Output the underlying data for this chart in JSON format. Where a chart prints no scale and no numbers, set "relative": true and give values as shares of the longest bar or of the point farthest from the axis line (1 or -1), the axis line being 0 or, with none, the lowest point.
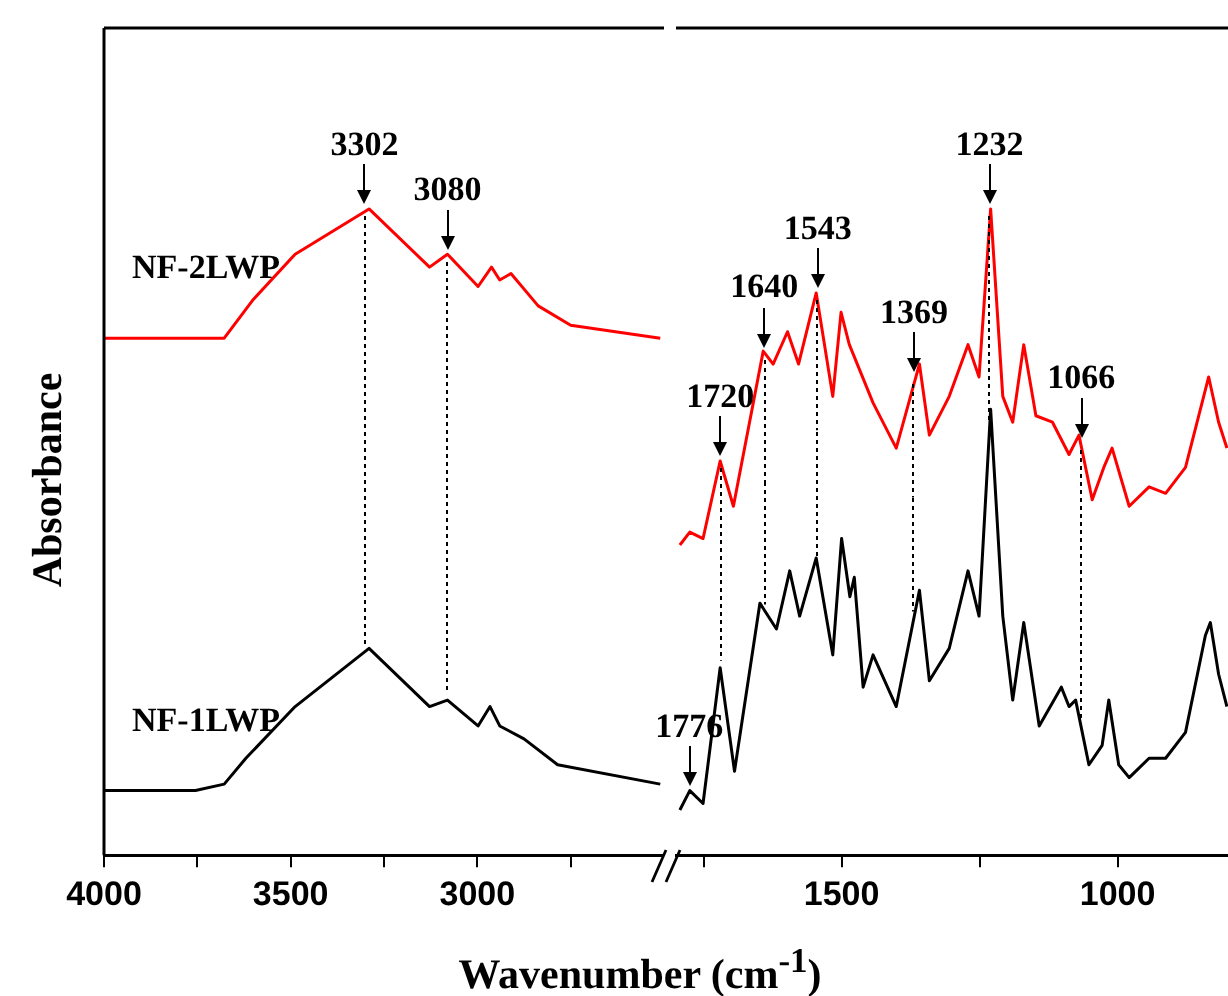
{
  "chart_data": [
    {
      "type": "line",
      "xlabel": "Wavenumber (cm$^{-1}$)",
      "ylabel": "Absorbance",
      "relative": true,
      "tick_labels": "x",
      "marker": "none",
      "xlim": [
        4000,
        2500
      ],
      "xticks": [
        4000,
        {
          "value": 3750,
          "label": null
        },
        3500,
        {
          "value": 3250,
          "label": null
        },
        3000,
        {
          "value": 2750,
          "label": null
        }
      ],
      "series": [
        {
          "name": "NF-2LWP",
          "color": "#ff0000",
          "x": [
            4000,
            3678,
            3600,
            3488,
            3290,
            3128,
            3080,
            2998,
            2962,
            2940,
            2910,
            2837,
            2750,
            2510
          ],
          "values": [
            0.8,
            0.8,
            0.86,
            0.93,
            1.0,
            0.91,
            0.93,
            0.88,
            0.91,
            0.89,
            0.9,
            0.85,
            0.82,
            0.8
          ]
        },
        {
          "name": "NF-1LWP",
          "color": "#000000",
          "x": [
            4000,
            3755,
            3678,
            3620,
            3488,
            3290,
            3128,
            3080,
            2998,
            2966,
            2940,
            2875,
            2785,
            2510
          ],
          "values": [
            0.1,
            0.1,
            0.11,
            0.15,
            0.23,
            0.32,
            0.23,
            0.24,
            0.2,
            0.23,
            0.2,
            0.18,
            0.14,
            0.11
          ]
        }
      ],
      "annotations": [
        {
          "text": "3302",
          "x": 3302,
          "y": 1.0
        },
        {
          "text": "3080",
          "x": 3080,
          "y": 0.93
        }
      ]
    },
    {
      "type": "line",
      "relative": true,
      "tick_labels": "x",
      "marker": "none",
      "xlim": [
        1800,
        800
      ],
      "xticks": [
        {
          "value": 1750,
          "label": null
        },
        1500,
        {
          "value": 1250,
          "label": null
        },
        1000
      ],
      "series": [
        {
          "color": "#ff0000",
          "x": [
            1793,
            1775,
            1751,
            1720,
            1696,
            1642,
            1624,
            1598,
            1578,
            1546,
            1516,
            1501,
            1486,
            1443,
            1401,
            1359,
            1341,
            1305,
            1271,
            1251,
            1230,
            1208,
            1190,
            1170,
            1148,
            1118,
            1088,
            1070,
            1046,
            1025,
            1010,
            979,
            943,
            913,
            877,
            835,
            817,
            802
          ],
          "values": [
            0.48,
            0.5,
            0.49,
            0.61,
            0.54,
            0.78,
            0.76,
            0.81,
            0.76,
            0.87,
            0.71,
            0.84,
            0.79,
            0.7,
            0.63,
            0.76,
            0.65,
            0.71,
            0.79,
            0.74,
            1.0,
            0.71,
            0.67,
            0.79,
            0.68,
            0.67,
            0.62,
            0.65,
            0.55,
            0.6,
            0.63,
            0.54,
            0.57,
            0.56,
            0.6,
            0.74,
            0.67,
            0.63
          ]
        },
        {
          "color": "#000000",
          "x": [
            1793,
            1775,
            1751,
            1720,
            1694,
            1648,
            1618,
            1594,
            1576,
            1546,
            1516,
            1500,
            1485,
            1477,
            1461,
            1443,
            1401,
            1359,
            1341,
            1305,
            1271,
            1251,
            1230,
            1208,
            1190,
            1170,
            1142,
            1102,
            1088,
            1076,
            1052,
            1028,
            1016,
            998,
            979,
            943,
            913,
            877,
            841,
            832,
            817,
            802
          ],
          "values": [
            0.07,
            0.1,
            0.08,
            0.29,
            0.13,
            0.39,
            0.35,
            0.44,
            0.37,
            0.46,
            0.31,
            0.49,
            0.4,
            0.43,
            0.26,
            0.31,
            0.23,
            0.41,
            0.27,
            0.32,
            0.44,
            0.37,
            0.69,
            0.37,
            0.24,
            0.36,
            0.2,
            0.26,
            0.23,
            0.24,
            0.14,
            0.17,
            0.24,
            0.14,
            0.12,
            0.15,
            0.15,
            0.19,
            0.34,
            0.36,
            0.28,
            0.23
          ]
        }
      ],
      "annotations": [
        {
          "text": "1776",
          "x": 1776,
          "y": 0.1
        },
        {
          "text": "1720",
          "x": 1720,
          "y": 0.61
        },
        {
          "text": "1640",
          "x": 1640,
          "y": 0.78
        },
        {
          "text": "1543",
          "x": 1543,
          "y": 0.87
        },
        {
          "text": "1369",
          "x": 1369,
          "y": 0.74
        },
        {
          "text": "1232",
          "x": 1232,
          "y": 1.0
        },
        {
          "text": "1066",
          "x": 1066,
          "y": 0.64
        }
      ]
    }
  ]
}
